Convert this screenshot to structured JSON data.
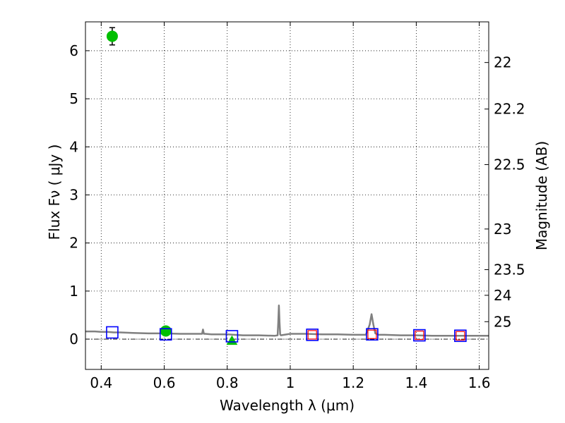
{
  "chart_data": {
    "type": "scatter",
    "xlabel": "Wavelength  λ (μm)",
    "ylabel": "Flux  Fν  ( μJy )",
    "ylabel_right": "Magnitude (AB)",
    "xlim": [
      0.35,
      1.63
    ],
    "ylim": [
      -0.63,
      6.6
    ],
    "x_ticks": [
      0.4,
      0.6,
      0.8,
      1.0,
      1.2,
      1.4,
      1.6
    ],
    "x_tick_labels": [
      "0.4",
      "0.6",
      "0.8",
      "1",
      "1.2",
      "1.4",
      "1.6"
    ],
    "y_ticks": [
      0,
      1,
      2,
      3,
      4,
      5,
      6
    ],
    "y_tick_labels": [
      "0",
      "1",
      "2",
      "3",
      "4",
      "5",
      "6"
    ],
    "right_tick_labels": [
      "22",
      "22.2",
      "22.5",
      "23",
      "23.5",
      "24",
      "25"
    ],
    "grid": true,
    "zero_line": true,
    "series": [
      {
        "kind": "line",
        "color": "#808080",
        "x": [
          0.35,
          0.36,
          0.38,
          0.4,
          0.42,
          0.44,
          0.46,
          0.5,
          0.55,
          0.6,
          0.65,
          0.7,
          0.72,
          0.723,
          0.726,
          0.73,
          0.75,
          0.8,
          0.85,
          0.9,
          0.95,
          0.96,
          0.962,
          0.964,
          0.966,
          0.968,
          0.97,
          1.0,
          1.05,
          1.1,
          1.15,
          1.2,
          1.24,
          1.252,
          1.258,
          1.264,
          1.27,
          1.28,
          1.3,
          1.35,
          1.4,
          1.45,
          1.5,
          1.55,
          1.6,
          1.63
        ],
        "y": [
          0.16,
          0.16,
          0.16,
          0.15,
          0.15,
          0.14,
          0.14,
          0.13,
          0.12,
          0.12,
          0.11,
          0.11,
          0.11,
          0.2,
          0.11,
          0.11,
          0.1,
          0.1,
          0.08,
          0.08,
          0.07,
          0.08,
          0.35,
          0.7,
          0.35,
          0.1,
          0.08,
          0.11,
          0.11,
          0.1,
          0.1,
          0.09,
          0.09,
          0.3,
          0.52,
          0.3,
          0.12,
          0.09,
          0.09,
          0.08,
          0.08,
          0.07,
          0.07,
          0.07,
          0.07,
          0.07
        ]
      },
      {
        "kind": "marker",
        "marker": "circle",
        "color": "#00bf00",
        "x": [
          0.435,
          0.605
        ],
        "y": [
          6.3,
          0.17
        ],
        "yerr": [
          0.18,
          0.02
        ]
      },
      {
        "kind": "marker",
        "marker": "triangle",
        "color": "#00bf00",
        "x": [
          0.815
        ],
        "y": [
          -0.04
        ]
      },
      {
        "kind": "marker",
        "marker": "square-open",
        "color": "#0000ff",
        "x": [
          0.435,
          0.605,
          0.815,
          1.07,
          1.26,
          1.41,
          1.54
        ],
        "y": [
          0.14,
          0.1,
          0.06,
          0.09,
          0.1,
          0.08,
          0.07
        ]
      },
      {
        "kind": "marker",
        "marker": "square-open-small",
        "color": "#ff0000",
        "x": [
          1.07,
          1.26,
          1.41,
          1.54
        ],
        "y": [
          0.09,
          0.1,
          0.08,
          0.07
        ]
      }
    ]
  }
}
